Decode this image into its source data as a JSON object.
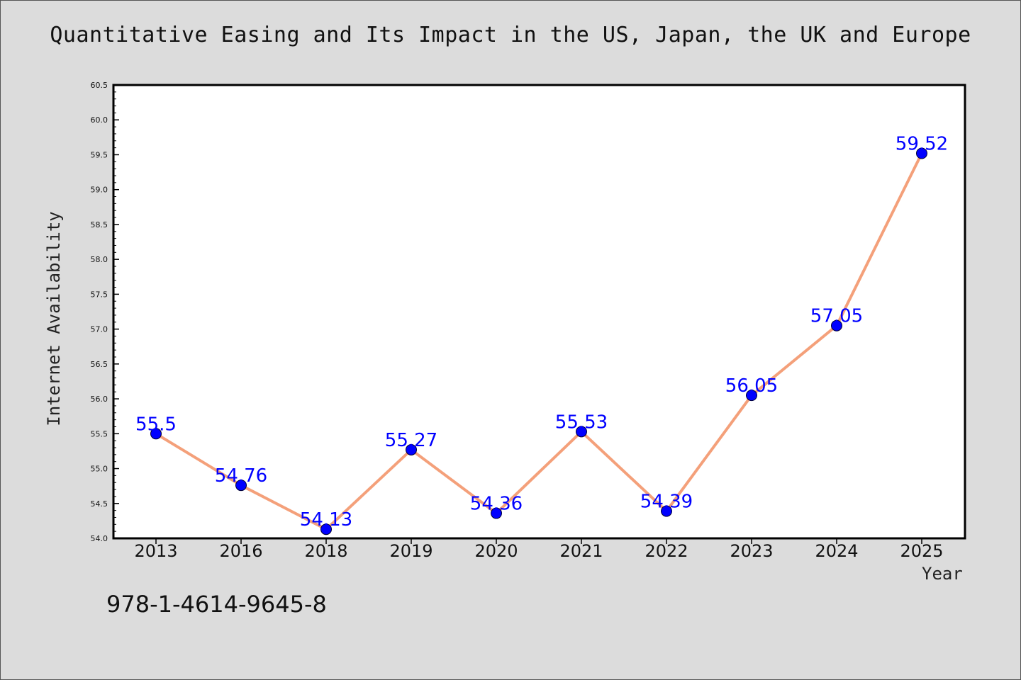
{
  "chart_data": {
    "type": "line",
    "title": "Quantitative Easing and Its Impact in the US, Japan, the UK and Europe",
    "xlabel": "Year",
    "ylabel": "Internet Availability",
    "categories": [
      "2013",
      "2016",
      "2018",
      "2019",
      "2020",
      "2021",
      "2022",
      "2023",
      "2024",
      "2025"
    ],
    "series": [
      {
        "values": [
          55.5,
          54.76,
          54.13,
          55.27,
          54.36,
          55.53,
          54.39,
          56.05,
          57.05,
          59.52
        ],
        "labels": [
          "55.5",
          "54.76",
          "54.13",
          "55.27",
          "54.36",
          "55.53",
          "54.39",
          "56.05",
          "57.05",
          "59.52"
        ],
        "line_color": "#f4a07a",
        "marker_color": "#0000ff"
      }
    ],
    "ylim": [
      54.0,
      60.5
    ],
    "yticks": [
      "54.0",
      "54.5",
      "55.0",
      "55.5",
      "56.0",
      "56.5",
      "57.0",
      "57.5",
      "58.0",
      "58.5",
      "59.0",
      "59.5",
      "60.0",
      "60.5"
    ],
    "grid": false,
    "legend": "none"
  },
  "annotation": "978-1-4614-9645-8",
  "colors": {
    "background": "#dcdcdc",
    "plot_background": "#ffffff",
    "label_color": "#0000ff"
  }
}
